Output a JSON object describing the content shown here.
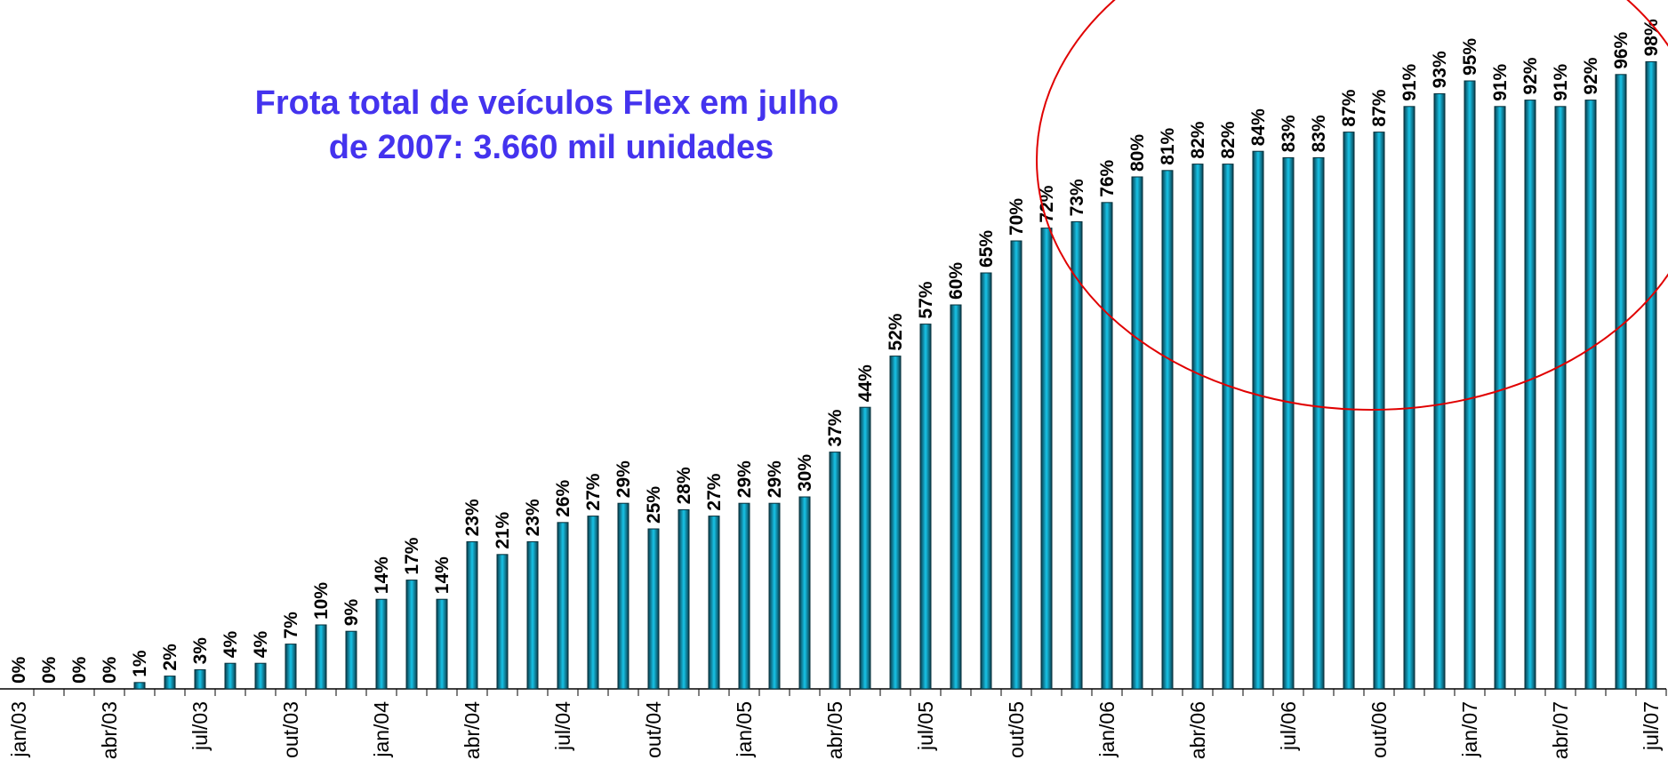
{
  "chart_data": {
    "type": "bar",
    "title": [
      "Frota total de veículos Flex em julho",
      "de 2007: 3.660  mil unidades"
    ],
    "categories": [
      "jan/03",
      null,
      null,
      "abr/03",
      null,
      null,
      "jul/03",
      null,
      null,
      "out/03",
      null,
      null,
      "jan/04",
      null,
      null,
      "abr/04",
      null,
      null,
      "jul/04",
      null,
      null,
      "out/04",
      null,
      null,
      "jan/05",
      null,
      null,
      "abr/05",
      null,
      null,
      "jul/05",
      null,
      null,
      "out/05",
      null,
      null,
      "jan/06",
      null,
      null,
      "abr/06",
      null,
      null,
      "jul/06",
      null,
      null,
      "out/06",
      null,
      null,
      "jan/07",
      null,
      null,
      "abr/07",
      null,
      null,
      "jul/07"
    ],
    "values": [
      0,
      0,
      0,
      0,
      1,
      2,
      3,
      4,
      4,
      7,
      10,
      9,
      14,
      17,
      14,
      23,
      21,
      23,
      26,
      27,
      29,
      25,
      28,
      27,
      29,
      29,
      30,
      37,
      44,
      52,
      57,
      60,
      65,
      70,
      72,
      73,
      76,
      80,
      81,
      82,
      82,
      84,
      83,
      83,
      87,
      87,
      91,
      93,
      95,
      91,
      92,
      91,
      92,
      96,
      98
    ],
    "value_labels": [
      "0%",
      "0%",
      "0%",
      "0%",
      "1%",
      "2%",
      "3%",
      "4%",
      "4%",
      "7%",
      "10%",
      "9%",
      "14%",
      "17%",
      "14%",
      "23%",
      "21%",
      "23%",
      "26%",
      "27%",
      "29%",
      "25%",
      "28%",
      "27%",
      "29%",
      "29%",
      "30%",
      "37%",
      "44%",
      "52%",
      "57%",
      "60%",
      "65%",
      "70%",
      "72%",
      "73%",
      "76%",
      "80%",
      "81%",
      "82%",
      "82%",
      "84%",
      "83%",
      "83%",
      "87%",
      "87%",
      "91%",
      "93%",
      "95%",
      "91%",
      "92%",
      "91%",
      "92%",
      "96%",
      "98%"
    ],
    "color": "#17c4e8"
  }
}
